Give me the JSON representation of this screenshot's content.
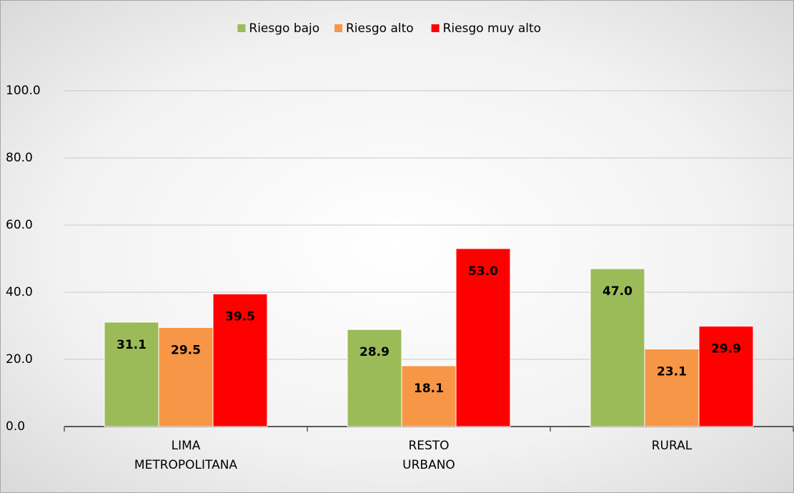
{
  "chart_data": {
    "type": "bar",
    "categories": [
      "LIMA METROPOLITANA",
      "RESTO URBANO",
      "RURAL"
    ],
    "series": [
      {
        "name": "Riesgo bajo",
        "color": "#9bbb59",
        "values": [
          31.1,
          28.9,
          47.0
        ],
        "value_labels": [
          "31.1",
          "28.9",
          "47.0"
        ]
      },
      {
        "name": "Riesgo alto",
        "color": "#f79646",
        "values": [
          29.5,
          18.1,
          23.1
        ],
        "value_labels": [
          "29.5",
          "18.1",
          "23.1"
        ]
      },
      {
        "name": "Riesgo muy alto",
        "color": "#ff0000",
        "values": [
          39.5,
          53.0,
          29.9
        ],
        "value_labels": [
          "39.5",
          "53.0",
          "29.9"
        ]
      }
    ],
    "ylim": [
      0,
      100
    ],
    "yticks": [
      {
        "value": 0,
        "label": "0.0"
      },
      {
        "value": 20,
        "label": "20.0"
      },
      {
        "value": 40,
        "label": "40.0"
      },
      {
        "value": 60,
        "label": "60.0"
      },
      {
        "value": 80,
        "label": "80.0"
      },
      {
        "value": 100,
        "label": "100.0"
      }
    ],
    "grid": true,
    "legend": "top"
  }
}
